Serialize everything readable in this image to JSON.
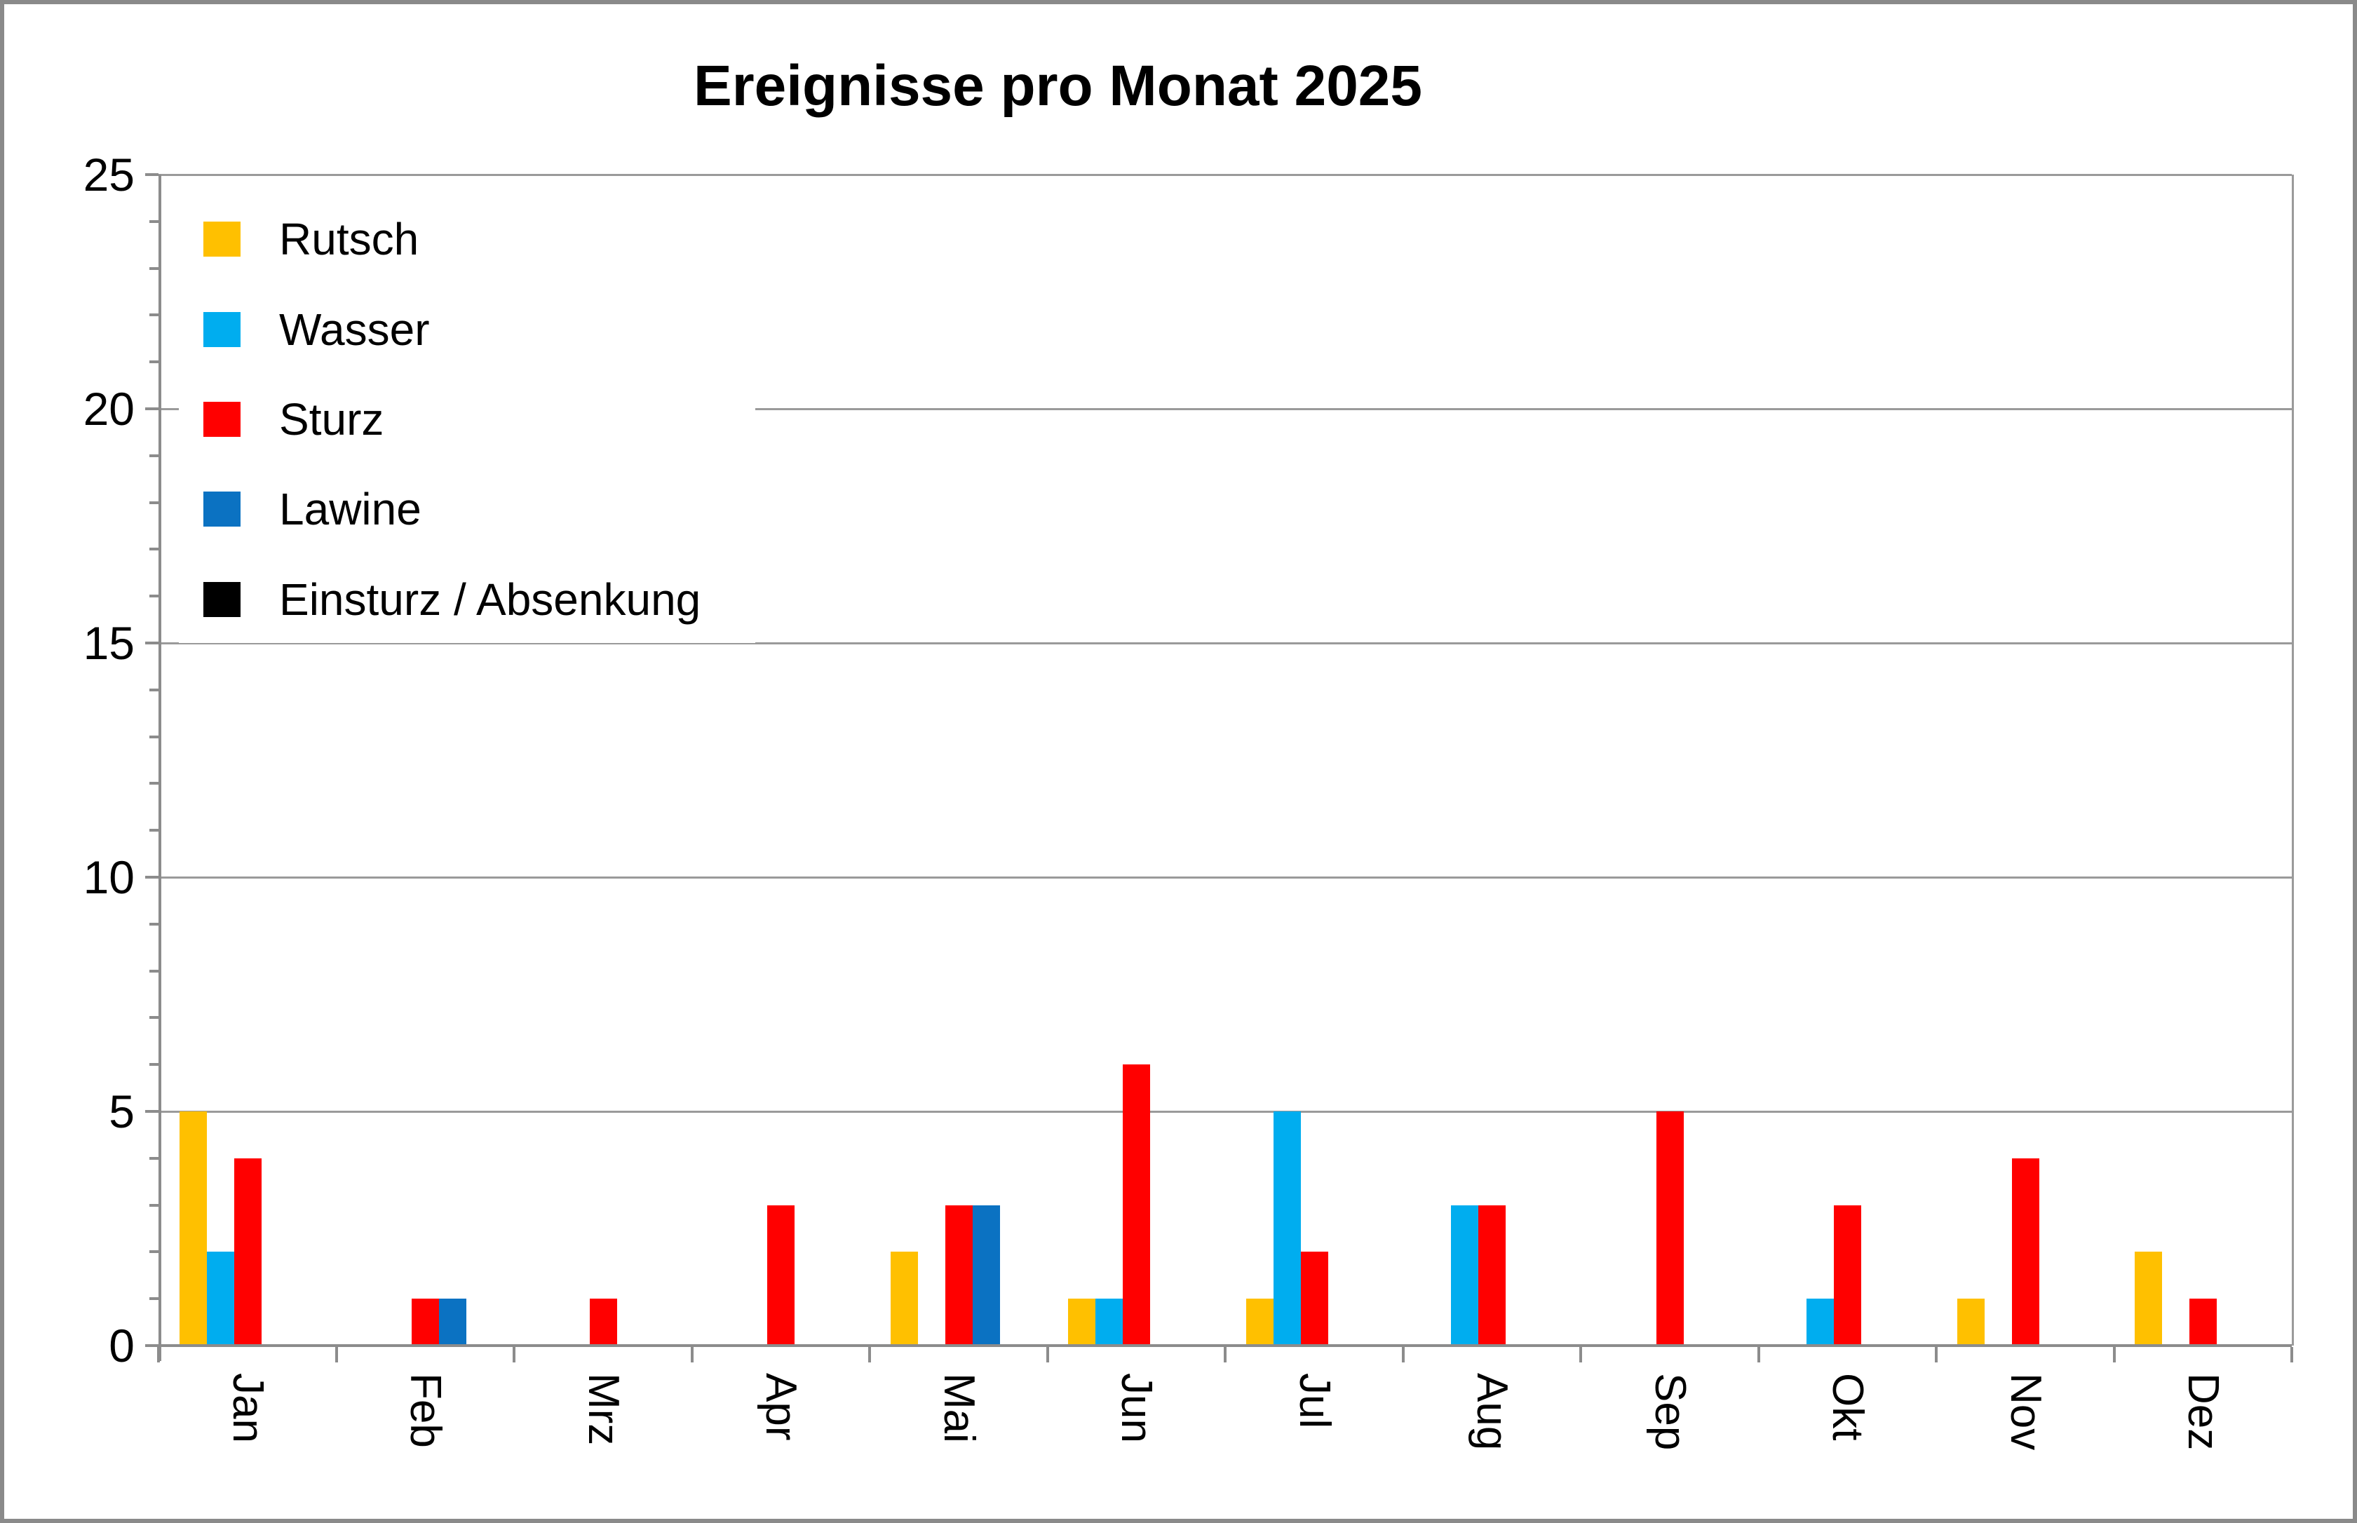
{
  "chart_data": {
    "type": "bar",
    "title": "Ereignisse pro Monat 2025",
    "categories": [
      "Jan",
      "Feb",
      "Mrz",
      "Apr",
      "Mai",
      "Jun",
      "Jul",
      "Aug",
      "Sep",
      "Okt",
      "Nov",
      "Dez"
    ],
    "series": [
      {
        "name": "Rutsch",
        "color": "#FFC000",
        "values": [
          5,
          0,
          0,
          0,
          2,
          1,
          1,
          0,
          0,
          0,
          1,
          2
        ]
      },
      {
        "name": "Wasser",
        "color": "#00ADEF",
        "values": [
          2,
          0,
          0,
          0,
          0,
          1,
          5,
          3,
          0,
          1,
          0,
          0
        ]
      },
      {
        "name": "Sturz",
        "color": "#FF0000",
        "values": [
          4,
          1,
          1,
          3,
          3,
          6,
          2,
          3,
          5,
          3,
          4,
          1
        ]
      },
      {
        "name": "Lawine",
        "color": "#0B72C2",
        "values": [
          0,
          1,
          0,
          0,
          3,
          0,
          0,
          0,
          0,
          0,
          0,
          0
        ]
      },
      {
        "name": "Einsturz / Absenkung",
        "color": "#000000",
        "values": [
          0,
          0,
          0,
          0,
          0,
          0,
          0,
          0,
          0,
          0,
          0,
          0
        ]
      }
    ],
    "xlabel": "",
    "ylabel": "",
    "ylim": [
      0,
      25
    ],
    "y_major_ticks": [
      0,
      5,
      10,
      15,
      20,
      25
    ],
    "y_minor_tick_step": 1,
    "grid": "horizontal-major",
    "legend_position": "inside-top-left",
    "x_label_rotation_deg": 90
  },
  "styles": {
    "background": "#FFFFFF",
    "grid_color": "#9A9A9A",
    "axis_color": "#8C8C8C",
    "frame_border_color": "#8A8A8A",
    "text_color": "#000000"
  }
}
